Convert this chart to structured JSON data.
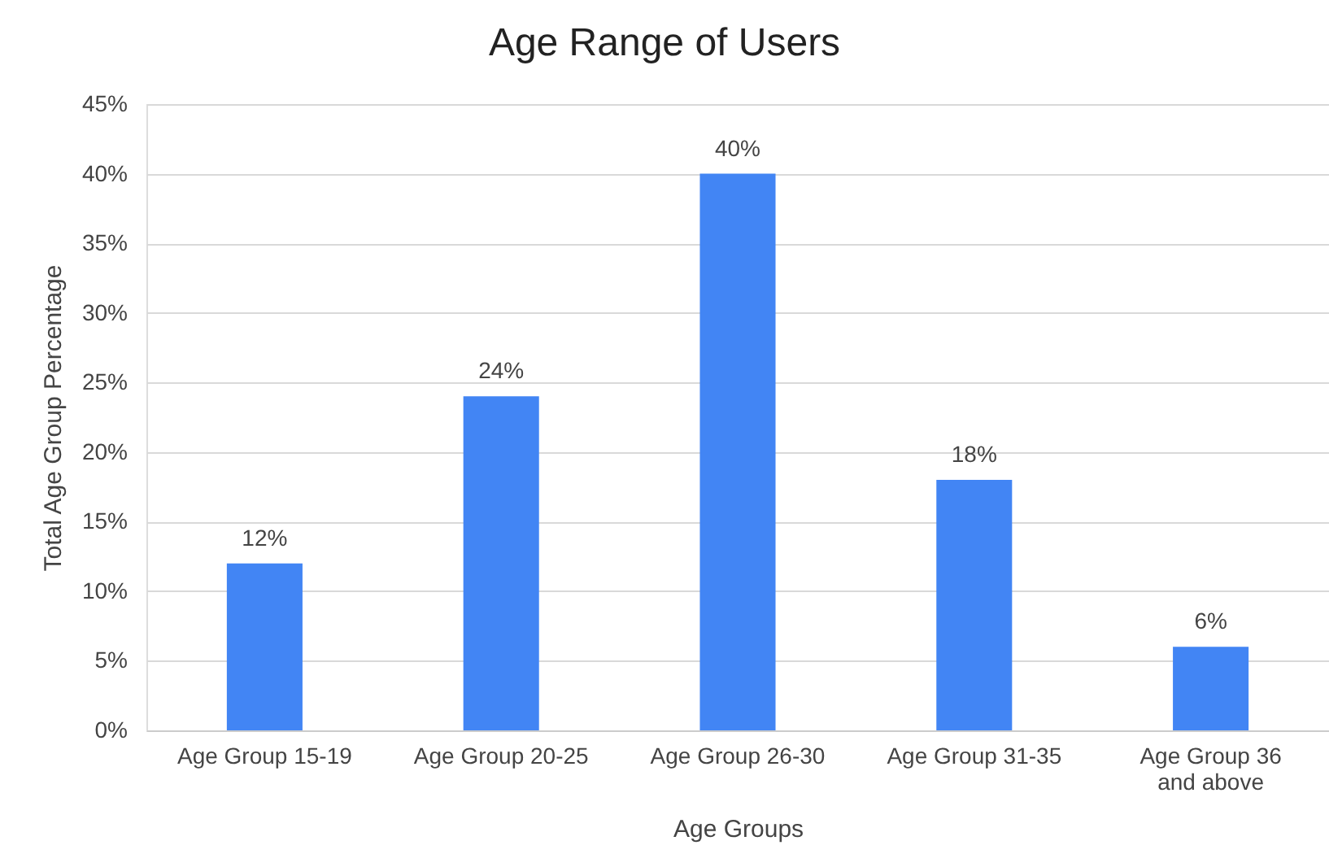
{
  "chart_data": {
    "type": "bar",
    "title": "Age Range of Users",
    "xlabel": "Age Groups",
    "ylabel": "Total Age Group Percentage",
    "categories": [
      "Age Group 15-19",
      "Age Group 20-25",
      "Age Group 26-30",
      "Age Group 31-35",
      "Age Group 36 and above"
    ],
    "values": [
      12,
      24,
      40,
      18,
      6
    ],
    "color": "#4285f4",
    "value_labels": [
      "12%",
      "24%",
      "40%",
      "18%",
      "6%"
    ],
    "ylim": [
      0,
      45
    ],
    "yticks": [
      {
        "value": 0,
        "label": "0%"
      },
      {
        "value": 5,
        "label": "5%"
      },
      {
        "value": 10,
        "label": "10%"
      },
      {
        "value": 15,
        "label": "15%"
      },
      {
        "value": 20,
        "label": "20%"
      },
      {
        "value": 25,
        "label": "25%"
      },
      {
        "value": 30,
        "label": "30%"
      },
      {
        "value": 35,
        "label": "35%"
      },
      {
        "value": 40,
        "label": "40%"
      },
      {
        "value": 45,
        "label": "45%"
      }
    ],
    "grid": "y"
  }
}
